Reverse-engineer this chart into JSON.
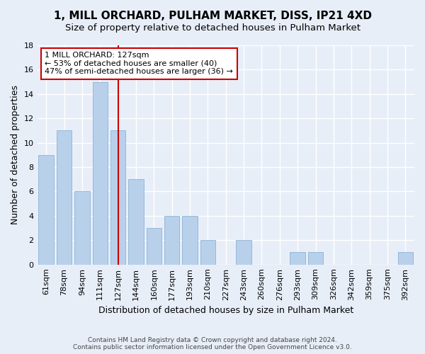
{
  "title": "1, MILL ORCHARD, PULHAM MARKET, DISS, IP21 4XD",
  "subtitle": "Size of property relative to detached houses in Pulham Market",
  "xlabel": "Distribution of detached houses by size in Pulham Market",
  "ylabel": "Number of detached properties",
  "categories": [
    "61sqm",
    "78sqm",
    "94sqm",
    "111sqm",
    "127sqm",
    "144sqm",
    "160sqm",
    "177sqm",
    "193sqm",
    "210sqm",
    "227sqm",
    "243sqm",
    "260sqm",
    "276sqm",
    "293sqm",
    "309sqm",
    "326sqm",
    "342sqm",
    "359sqm",
    "375sqm",
    "392sqm"
  ],
  "values": [
    9,
    11,
    6,
    15,
    11,
    7,
    3,
    4,
    4,
    2,
    0,
    2,
    0,
    0,
    1,
    1,
    0,
    0,
    0,
    0,
    1
  ],
  "bar_color": "#b8d0ea",
  "bar_edge_color": "#8ab4d8",
  "vline_x_index": 4,
  "vline_color": "#cc0000",
  "annotation_text": "1 MILL ORCHARD: 127sqm\n← 53% of detached houses are smaller (40)\n47% of semi-detached houses are larger (36) →",
  "annotation_box_color": "#ffffff",
  "annotation_box_edge": "#cc0000",
  "ylim": [
    0,
    18
  ],
  "yticks": [
    0,
    2,
    4,
    6,
    8,
    10,
    12,
    14,
    16,
    18
  ],
  "footer": "Contains HM Land Registry data © Crown copyright and database right 2024.\nContains public sector information licensed under the Open Government Licence v3.0.",
  "bg_color": "#e8eef8",
  "plot_bg_color": "#e8eef8",
  "title_fontsize": 11,
  "subtitle_fontsize": 9.5,
  "xlabel_fontsize": 9,
  "ylabel_fontsize": 9,
  "tick_fontsize": 8,
  "footer_fontsize": 6.5,
  "annotation_fontsize": 8
}
